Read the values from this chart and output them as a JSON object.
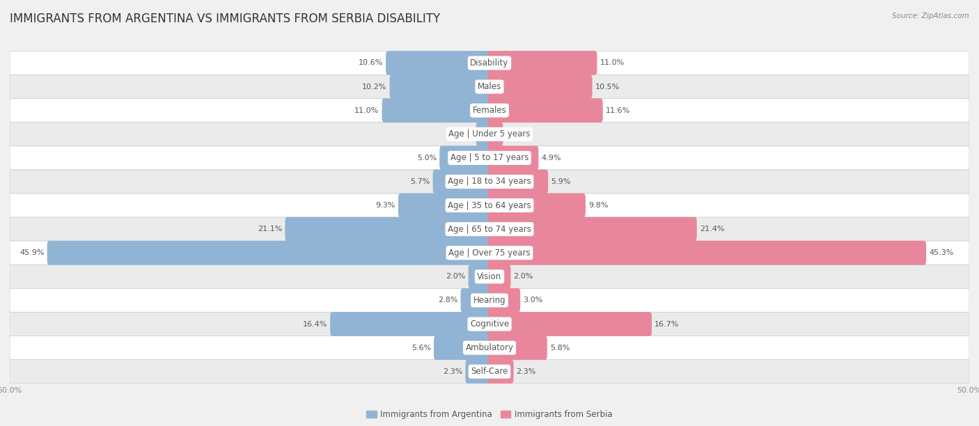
{
  "title": "IMMIGRANTS FROM ARGENTINA VS IMMIGRANTS FROM SERBIA DISABILITY",
  "source": "Source: ZipAtlas.com",
  "categories": [
    "Disability",
    "Males",
    "Females",
    "Age | Under 5 years",
    "Age | 5 to 17 years",
    "Age | 18 to 34 years",
    "Age | 35 to 64 years",
    "Age | 65 to 74 years",
    "Age | Over 75 years",
    "Vision",
    "Hearing",
    "Cognitive",
    "Ambulatory",
    "Self-Care"
  ],
  "argentina_values": [
    10.6,
    10.2,
    11.0,
    1.2,
    5.0,
    5.7,
    9.3,
    21.1,
    45.9,
    2.0,
    2.8,
    16.4,
    5.6,
    2.3
  ],
  "serbia_values": [
    11.0,
    10.5,
    11.6,
    1.2,
    4.9,
    5.9,
    9.8,
    21.4,
    45.3,
    2.0,
    3.0,
    16.7,
    5.8,
    2.3
  ],
  "argentina_color": "#92b4d4",
  "serbia_color": "#e8879c",
  "argentina_label": "Immigrants from Argentina",
  "serbia_label": "Immigrants from Serbia",
  "background_color": "#f0f0f0",
  "row_bg_even": "#ffffff",
  "row_bg_odd": "#ebebeb",
  "xlim": 50.0,
  "bar_height": 0.6,
  "title_fontsize": 12,
  "label_fontsize": 8.5,
  "value_fontsize": 8,
  "tick_fontsize": 8
}
